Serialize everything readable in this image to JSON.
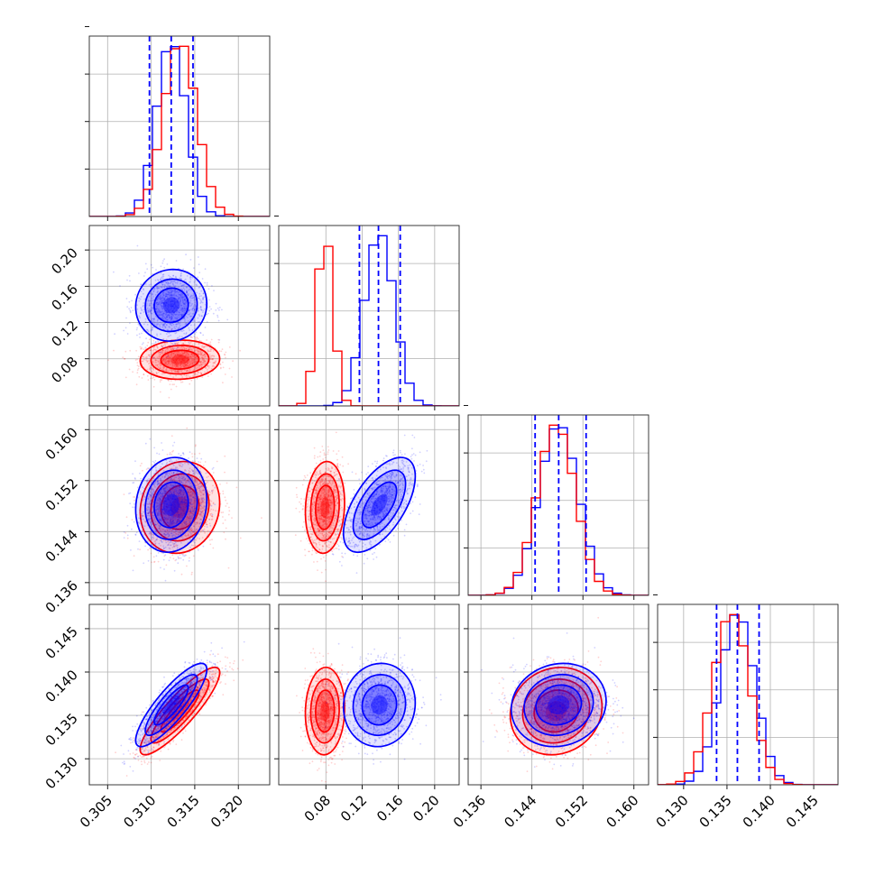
{
  "chart_data": {
    "type": "corner",
    "parameters": [
      {
        "ticks": [
          0.305,
          0.31,
          0.315,
          0.32
        ],
        "tick_labels": [
          "0.305",
          "0.310",
          "0.315",
          "0.320"
        ],
        "range": [
          0.3029,
          0.3236
        ]
      },
      {
        "ticks": [
          0.08,
          0.12,
          0.16,
          0.2
        ],
        "tick_labels": [
          "0.08",
          "0.12",
          "0.16",
          "0.20"
        ],
        "range": [
          0.028,
          0.227
        ]
      },
      {
        "ticks": [
          0.136,
          0.144,
          0.152,
          0.16
        ],
        "tick_labels": [
          "0.136",
          "0.144",
          "0.152",
          "0.160"
        ],
        "range": [
          0.134,
          0.1623
        ]
      },
      {
        "ticks": [
          0.13,
          0.135,
          0.14,
          0.145
        ],
        "tick_labels": [
          "0.130",
          "0.135",
          "0.140",
          "0.145"
        ],
        "range": [
          0.127,
          0.1478
        ]
      }
    ],
    "series": [
      {
        "color": "#0000ff",
        "mean": [
          0.3123,
          0.139,
          0.1482,
          0.1362
        ],
        "std": [
          0.0017,
          0.0165,
          0.0031,
          0.002
        ],
        "quantiles": [
          [
            0.3098,
            0.3123,
            0.3148
          ],
          [
            0.117,
            0.138,
            0.162
          ],
          [
            0.1445,
            0.1482,
            0.1525
          ],
          [
            0.1338,
            0.1362,
            0.1387
          ]
        ],
        "corr": [
          [
            1,
            0.05,
            0.1,
            0.85
          ],
          [
            0.05,
            1,
            0.6,
            0.05
          ],
          [
            0.1,
            0.6,
            1,
            0.1
          ],
          [
            0.85,
            0.05,
            0.1,
            1
          ]
        ]
      },
      {
        "color": "#ff0000",
        "mean": [
          0.3133,
          0.079,
          0.1478,
          0.1355
        ],
        "std": [
          0.0019,
          0.009,
          0.003,
          0.0021
        ],
        "quantiles": null,
        "corr": [
          [
            1,
            0.05,
            0.1,
            0.88
          ],
          [
            0.05,
            1,
            0.1,
            0.05
          ],
          [
            0.1,
            0.1,
            1,
            0.1
          ],
          [
            0.88,
            0.05,
            0.1,
            1
          ]
        ]
      }
    ],
    "quantile_line_color": "#0000ff",
    "grid": true
  }
}
